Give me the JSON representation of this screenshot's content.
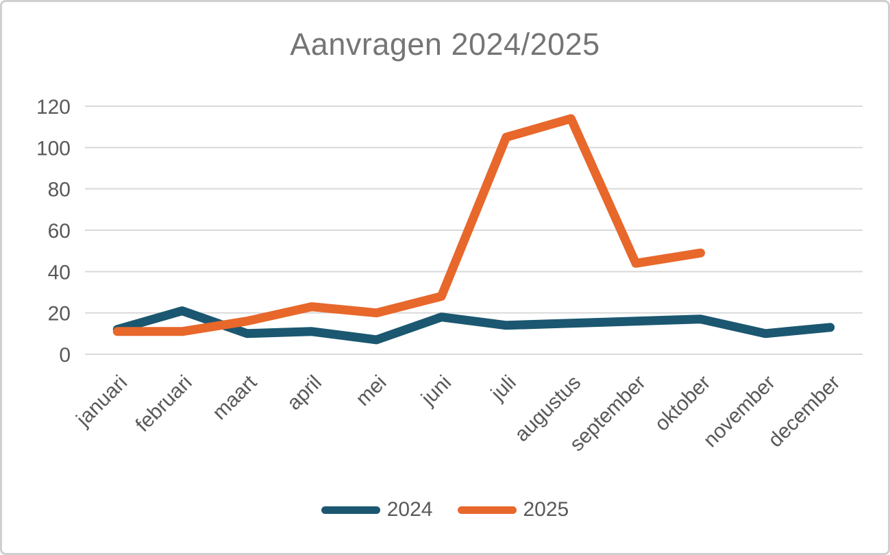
{
  "chart_data": {
    "type": "line",
    "title": "Aanvragen 2024/2025",
    "categories": [
      "januari",
      "februari",
      "maart",
      "april",
      "mei",
      "juni",
      "juli",
      "augustus",
      "september",
      "oktober",
      "november",
      "december"
    ],
    "series": [
      {
        "name": "2024",
        "color": "#1B5770",
        "values": [
          12,
          21,
          10,
          11,
          7,
          18,
          14,
          15,
          16,
          17,
          10,
          13
        ]
      },
      {
        "name": "2025",
        "color": "#E8672B",
        "values": [
          11,
          11,
          16,
          23,
          20,
          28,
          105,
          114,
          44,
          49,
          null,
          null
        ]
      }
    ],
    "ylim": [
      0,
      120
    ],
    "y_ticks": [
      0,
      20,
      40,
      60,
      80,
      100,
      120
    ],
    "grid": true,
    "legend_position": "bottom",
    "x_label_rotation_deg": -45,
    "colors": {
      "title": "#757575",
      "tick_labels": "#595959",
      "gridline": "#D9D9D9",
      "border": "#CFCFCF",
      "background": "#FFFFFF"
    }
  }
}
